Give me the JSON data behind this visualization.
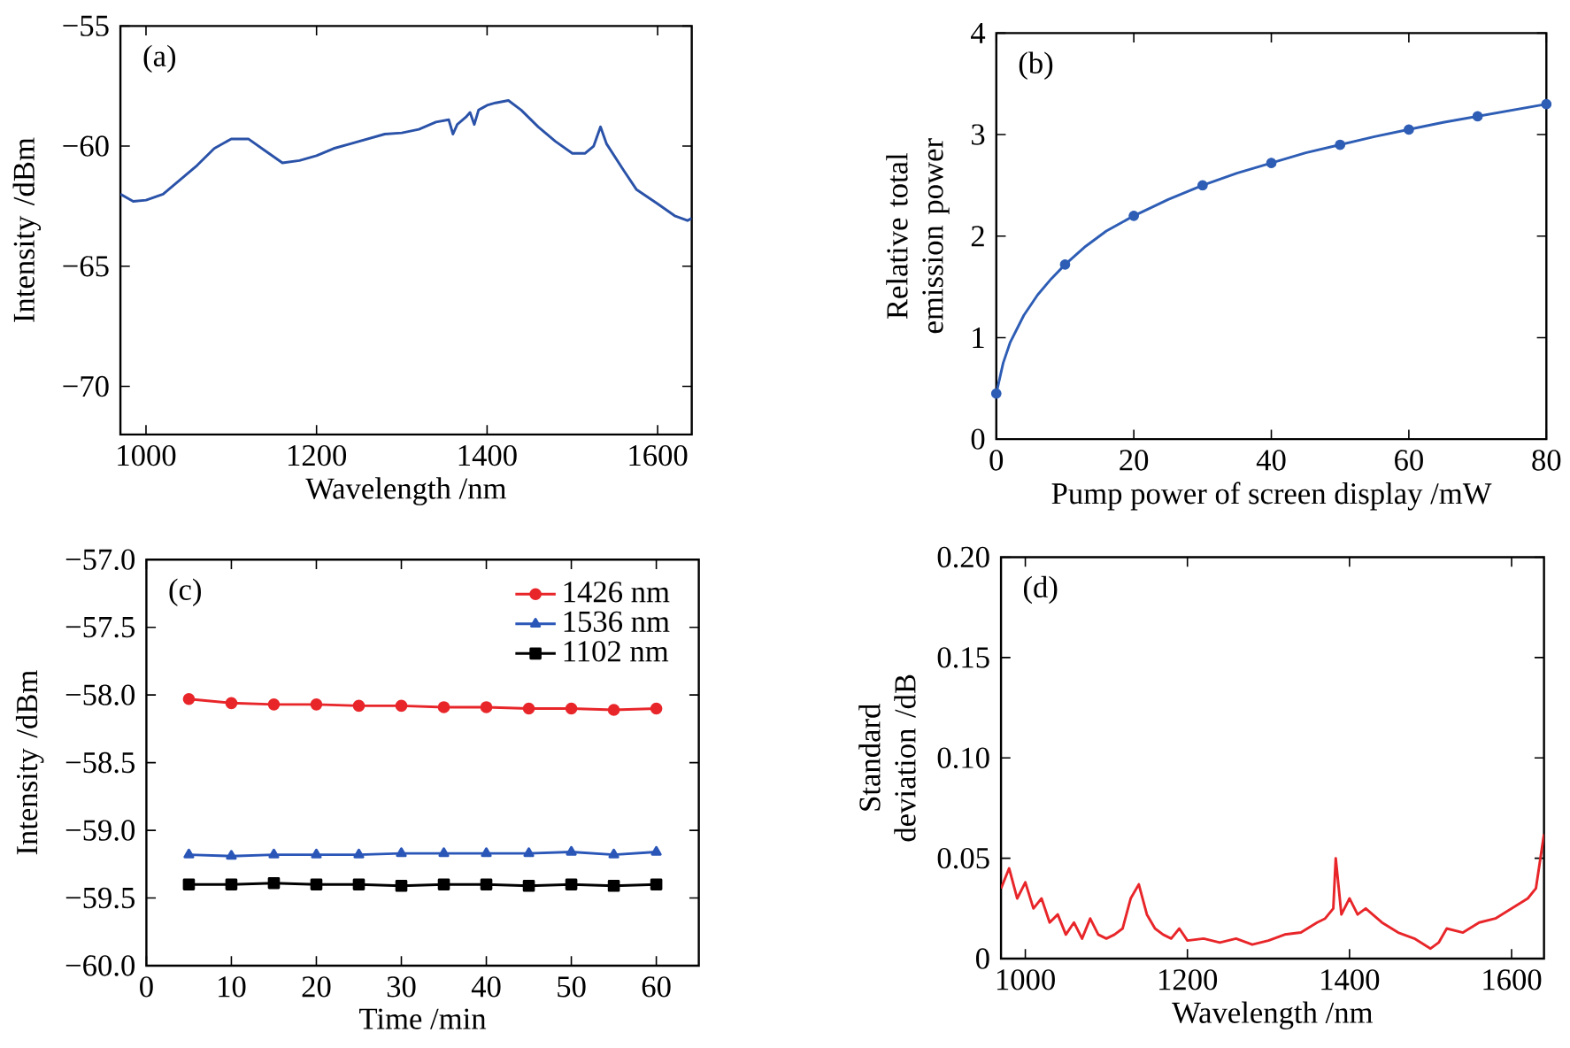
{
  "chart_data": [
    {
      "type": "line",
      "xlabel": "Wavelength /nm",
      "ylabel": "Intensity /dBm",
      "annotations": [
        "(a)"
      ],
      "xlim": [
        970,
        1640
      ],
      "ylim": [
        -72,
        -55
      ],
      "xticks": [
        1000,
        1200,
        1400,
        1600
      ],
      "yticks": [
        {
          "value": -70,
          "label": "−70"
        },
        {
          "value": -65,
          "label": "−65"
        },
        {
          "value": -60,
          "label": "−60"
        },
        {
          "value": -55,
          "label": "−55"
        }
      ],
      "series": [
        {
          "color": "#2a52a8",
          "x": [
            970,
            985,
            1000,
            1020,
            1040,
            1060,
            1080,
            1100,
            1120,
            1140,
            1160,
            1180,
            1200,
            1220,
            1240,
            1260,
            1280,
            1300,
            1320,
            1340,
            1355,
            1360,
            1365,
            1375,
            1380,
            1385,
            1390,
            1395,
            1400,
            1410,
            1425,
            1440,
            1460,
            1480,
            1500,
            1515,
            1525,
            1533,
            1540,
            1560,
            1575,
            1600,
            1620,
            1635,
            1640
          ],
          "values": [
            -62.0,
            -62.3,
            -62.25,
            -62.0,
            -61.4,
            -60.8,
            -60.1,
            -59.7,
            -59.7,
            -60.2,
            -60.7,
            -60.6,
            -60.4,
            -60.1,
            -59.9,
            -59.7,
            -59.5,
            -59.45,
            -59.3,
            -59.0,
            -58.9,
            -59.5,
            -59.1,
            -58.8,
            -58.6,
            -59.1,
            -58.5,
            -58.4,
            -58.3,
            -58.2,
            -58.1,
            -58.5,
            -59.2,
            -59.8,
            -60.3,
            -60.3,
            -60.0,
            -59.2,
            -59.9,
            -61.0,
            -61.8,
            -62.4,
            -62.9,
            -63.1,
            -63.0
          ]
        }
      ]
    },
    {
      "type": "scatter",
      "xlabel": "Pump power of screen display /mW",
      "ylabel": "Relative total emission power",
      "annotations": [
        "(b)"
      ],
      "xlim": [
        0,
        80
      ],
      "ylim": [
        0,
        4
      ],
      "xticks": [
        0,
        20,
        40,
        60,
        80
      ],
      "yticks": [
        0,
        1,
        2,
        3,
        4
      ],
      "series": [
        {
          "type": "line",
          "color": "#2e5db5",
          "x": [
            0,
            1,
            2,
            4,
            6,
            8,
            10,
            13,
            16,
            20,
            25,
            30,
            35,
            40,
            45,
            50,
            55,
            60,
            65,
            70,
            75,
            80
          ],
          "values": [
            0.45,
            0.75,
            0.95,
            1.22,
            1.42,
            1.58,
            1.72,
            1.9,
            2.05,
            2.2,
            2.36,
            2.5,
            2.62,
            2.72,
            2.82,
            2.9,
            2.98,
            3.05,
            3.12,
            3.18,
            3.24,
            3.3
          ]
        },
        {
          "type": "scatter",
          "marker": "circle",
          "color": "#2e5db5",
          "x": [
            0,
            10,
            20,
            30,
            40,
            50,
            60,
            70,
            80
          ],
          "values": [
            0.45,
            1.72,
            2.2,
            2.5,
            2.72,
            2.9,
            3.05,
            3.18,
            3.3
          ]
        }
      ]
    },
    {
      "type": "line",
      "xlabel": "Time /min",
      "ylabel": "Intensity /dBm",
      "annotations": [
        "(c)"
      ],
      "legend": "top right",
      "xlim": [
        0,
        65
      ],
      "ylim": [
        -60,
        -57
      ],
      "xticks": [
        0,
        10,
        20,
        30,
        40,
        50,
        60
      ],
      "yticks": [
        {
          "value": -60,
          "label": "−60.0"
        },
        {
          "value": -59.5,
          "label": "−59.5"
        },
        {
          "value": -59,
          "label": "−59.0"
        },
        {
          "value": -58.5,
          "label": "−58.5"
        },
        {
          "value": -58,
          "label": "−58.0"
        },
        {
          "value": -57.5,
          "label": "−57.5"
        },
        {
          "value": -57,
          "label": "−57.0"
        }
      ],
      "x": [
        5,
        10,
        15,
        20,
        25,
        30,
        35,
        40,
        45,
        50,
        55,
        60
      ],
      "series": [
        {
          "name": "1426 nm",
          "marker": "circle",
          "color": "#e8262a",
          "values": [
            -58.03,
            -58.06,
            -58.07,
            -58.07,
            -58.08,
            -58.08,
            -58.09,
            -58.09,
            -58.1,
            -58.1,
            -58.11,
            -58.1
          ]
        },
        {
          "name": "1536 nm",
          "marker": "triangle",
          "color": "#2a56b8",
          "values": [
            -59.18,
            -59.19,
            -59.18,
            -59.18,
            -59.18,
            -59.17,
            -59.17,
            -59.17,
            -59.17,
            -59.16,
            -59.18,
            -59.16
          ]
        },
        {
          "name": "1102 nm",
          "marker": "square",
          "color": "#000000",
          "values": [
            -59.4,
            -59.4,
            -59.39,
            -59.4,
            -59.4,
            -59.41,
            -59.4,
            -59.4,
            -59.41,
            -59.4,
            -59.41,
            -59.4
          ]
        }
      ]
    },
    {
      "type": "line",
      "xlabel": "Wavelength /nm",
      "ylabel": "Standard deviation /dB",
      "annotations": [
        "(d)"
      ],
      "xlim": [
        970,
        1640
      ],
      "ylim": [
        0,
        0.2
      ],
      "xticks": [
        1000,
        1200,
        1400,
        1600
      ],
      "yticks": [
        0,
        {
          "value": 0.05,
          "label": "0.05"
        },
        {
          "value": 0.1,
          "label": "0.10"
        },
        {
          "value": 0.15,
          "label": "0.15"
        },
        {
          "value": 0.2,
          "label": "0.20"
        }
      ],
      "series": [
        {
          "color": "#e8262a",
          "x": [
            970,
            980,
            990,
            1000,
            1010,
            1020,
            1030,
            1040,
            1050,
            1060,
            1070,
            1080,
            1090,
            1100,
            1110,
            1120,
            1130,
            1140,
            1150,
            1160,
            1170,
            1180,
            1190,
            1200,
            1220,
            1240,
            1260,
            1280,
            1300,
            1320,
            1340,
            1360,
            1370,
            1380,
            1383,
            1390,
            1400,
            1410,
            1420,
            1440,
            1460,
            1480,
            1500,
            1510,
            1520,
            1540,
            1560,
            1580,
            1600,
            1620,
            1630,
            1640
          ],
          "values": [
            0.035,
            0.045,
            0.03,
            0.038,
            0.025,
            0.03,
            0.018,
            0.022,
            0.012,
            0.018,
            0.01,
            0.02,
            0.012,
            0.01,
            0.012,
            0.015,
            0.03,
            0.037,
            0.022,
            0.015,
            0.012,
            0.01,
            0.015,
            0.009,
            0.01,
            0.008,
            0.01,
            0.007,
            0.009,
            0.012,
            0.013,
            0.018,
            0.02,
            0.025,
            0.05,
            0.022,
            0.03,
            0.022,
            0.025,
            0.018,
            0.013,
            0.01,
            0.005,
            0.008,
            0.015,
            0.013,
            0.018,
            0.02,
            0.025,
            0.03,
            0.035,
            0.062
          ]
        }
      ]
    }
  ]
}
